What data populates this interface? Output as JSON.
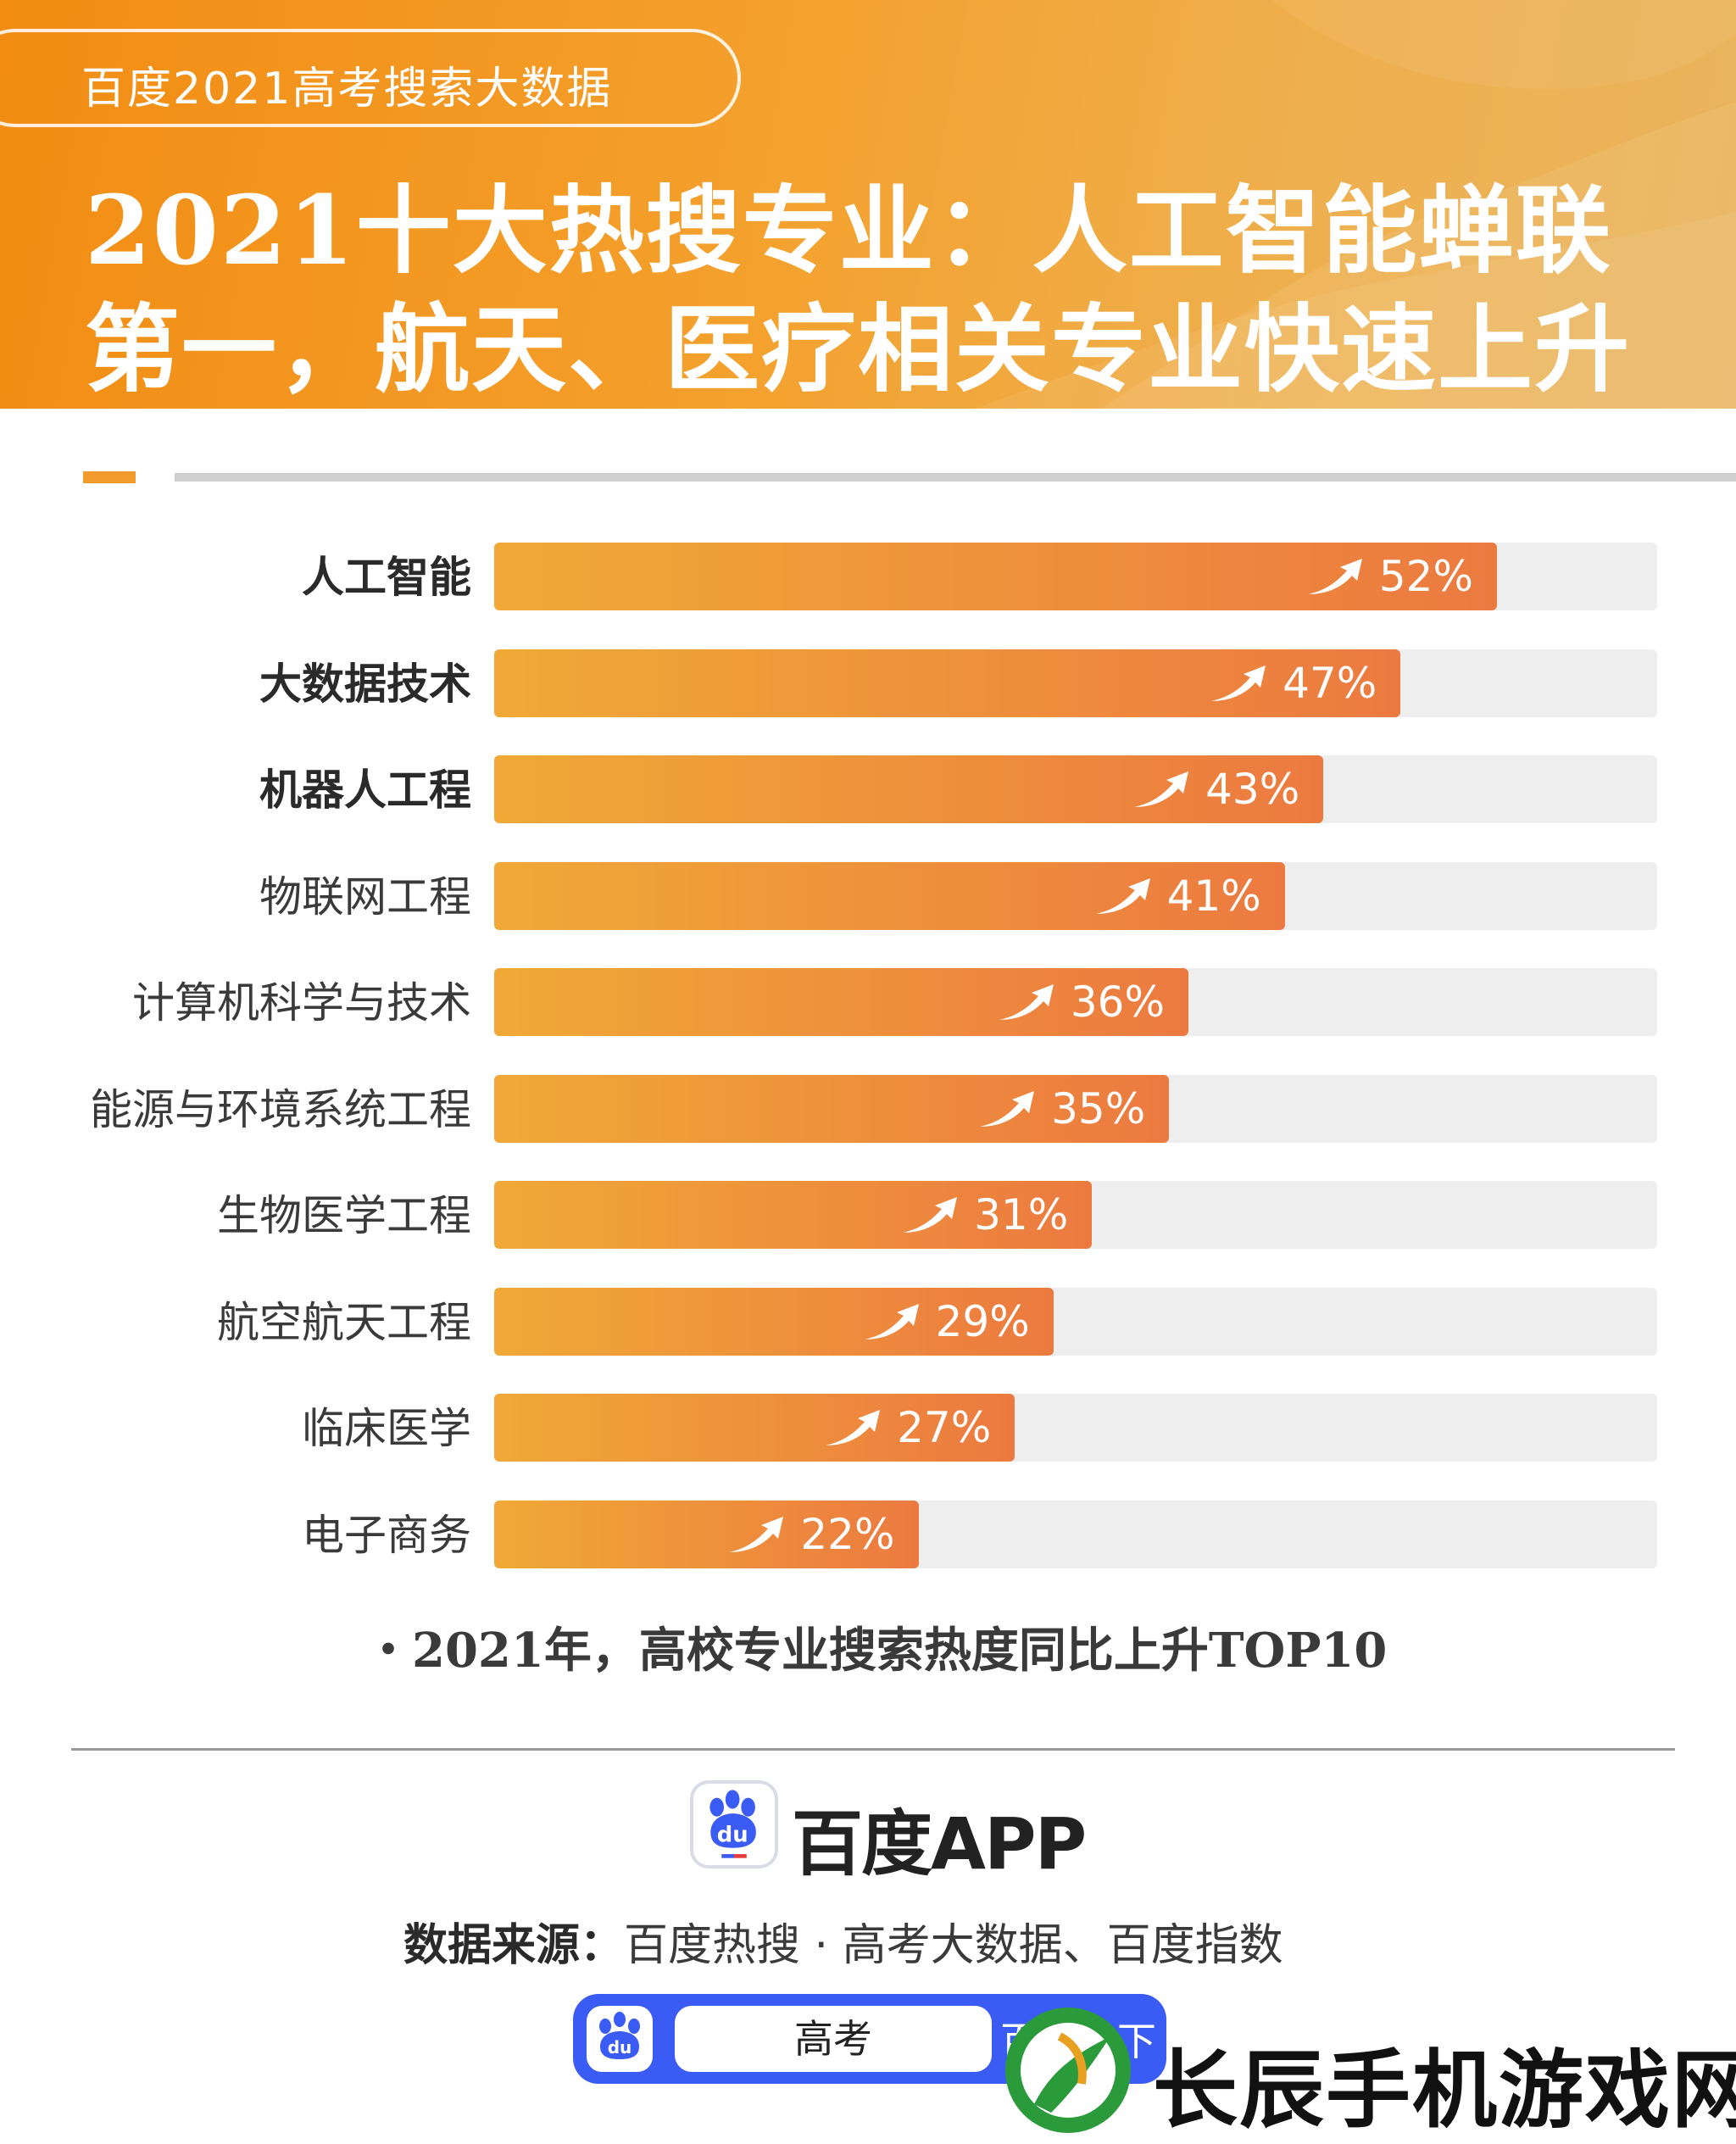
{
  "header": {
    "tag": "百度2021高考搜索大数据",
    "title_line1": "2021十大热搜专业：人工智能蝉联",
    "title_line2": "第一，航天、医疗相关专业快速上升"
  },
  "chart_data": {
    "type": "bar",
    "orientation": "horizontal",
    "categories": [
      "人工智能",
      "大数据技术",
      "机器人工程",
      "物联网工程",
      "计算机科学与技术",
      "能源与环境系统工程",
      "生物医学工程",
      "航空航天工程",
      "临床医学",
      "电子商务"
    ],
    "bold_categories": [
      "人工智能",
      "大数据技术",
      "机器人工程"
    ],
    "values": [
      52,
      47,
      43,
      41,
      36,
      35,
      31,
      29,
      27,
      22
    ],
    "value_labels": [
      "52%",
      "47%",
      "43%",
      "41%",
      "36%",
      "35%",
      "31%",
      "29%",
      "27%",
      "22%"
    ],
    "unit": "%",
    "xlim": [
      0,
      60
    ],
    "grid": false,
    "bar_color": "#ec7a40",
    "track_color": "#eeeeee",
    "caption": "・2021年，高校专业搜索热度同比上升TOP10"
  },
  "footer": {
    "logo_text": "百度APP",
    "logo_mark": "du",
    "logo_icon": "baidu-paw-icon",
    "source_label": "数据来源：",
    "source_text": "百度热搜 · 高考大数据、百度指数",
    "search_query": "高考",
    "search_button": "百度一下"
  },
  "watermark": {
    "text": "长辰手机游戏网",
    "icon": "watermark-logo-icon"
  },
  "colors": {
    "banner": "#f28c12",
    "accent": "#f39a2c",
    "baidu_blue": "#3b5bf5"
  }
}
